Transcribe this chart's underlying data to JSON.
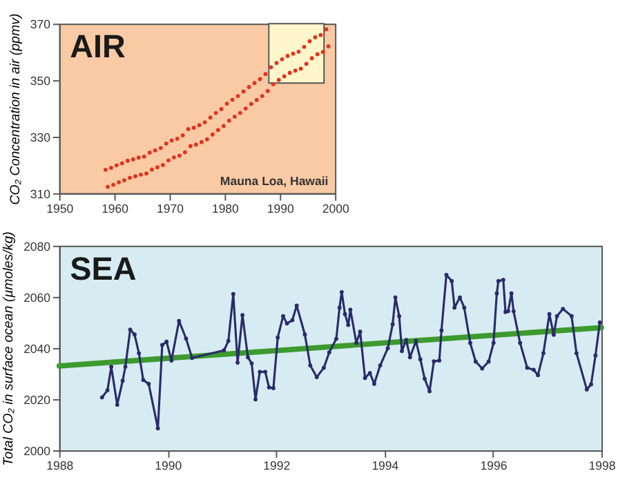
{
  "chart_data": [
    {
      "type": "scatter",
      "title": "AIR",
      "ylabel": "CO₂ Concentration in air (ppmv)",
      "xlim": [
        1950,
        2000
      ],
      "xticks": [
        1950,
        1960,
        1970,
        1980,
        1990,
        2000
      ],
      "ylim": [
        310,
        370
      ],
      "yticks": [
        310,
        330,
        350,
        370
      ],
      "marker": "circle",
      "annotations": [
        "Mauna Loa, Hawaii"
      ],
      "bands": [
        {
          "axis": "x",
          "from": 1988,
          "to": 1998,
          "color": "#fff6cc"
        }
      ],
      "series": [
        {
          "color": "#e2331e",
          "x": [
            1958.4,
            1958.8,
            1959.4,
            1959.8,
            1960.4,
            1960.8,
            1961.4,
            1961.8,
            1962.4,
            1962.8,
            1963.4,
            1963.8,
            1964.4,
            1964.8,
            1965.4,
            1965.8,
            1966.4,
            1966.8,
            1967.4,
            1967.8,
            1968.4,
            1968.8,
            1969.4,
            1969.8,
            1970.4,
            1970.8,
            1971.4,
            1971.8,
            1972.4,
            1972.8,
            1973.4,
            1973.8,
            1974.4,
            1974.8,
            1975.4,
            1975.8,
            1976.4,
            1976.8,
            1977.4,
            1977.8,
            1978.4,
            1978.8,
            1979.4,
            1979.8,
            1980.4,
            1980.8,
            1981.4,
            1981.8,
            1982.4,
            1982.8,
            1983.4,
            1983.8,
            1984.4,
            1984.8,
            1985.4,
            1985.8,
            1986.4,
            1986.8,
            1987.4,
            1987.8,
            1988.4,
            1988.8,
            1989.4,
            1989.8,
            1990.4,
            1990.8,
            1991.4,
            1991.8,
            1992.4,
            1992.8,
            1993.4,
            1993.8,
            1994.4,
            1994.8,
            1995.4,
            1995.8,
            1996.4,
            1996.8,
            1997.4,
            1997.8,
            1998.4,
            1998.8
          ],
          "values": [
            318.3,
            312.3,
            319.0,
            313.0,
            319.9,
            313.9,
            320.6,
            314.6,
            321.5,
            315.5,
            322.0,
            316.0,
            322.6,
            316.6,
            323.0,
            317.0,
            324.4,
            318.4,
            325.2,
            319.2,
            326.0,
            320.0,
            327.6,
            321.6,
            328.7,
            322.7,
            329.3,
            323.3,
            330.5,
            324.5,
            332.7,
            326.7,
            333.2,
            327.2,
            334.1,
            328.1,
            335.1,
            329.1,
            336.8,
            330.8,
            338.4,
            332.4,
            339.8,
            333.8,
            341.7,
            335.7,
            343.1,
            337.1,
            344.4,
            338.4,
            346.0,
            340.0,
            347.6,
            341.6,
            349.0,
            343.0,
            350.4,
            344.4,
            352.2,
            346.2,
            354.6,
            348.6,
            356.1,
            350.1,
            357.4,
            351.4,
            358.6,
            352.6,
            359.4,
            353.4,
            360.1,
            354.1,
            361.8,
            355.8,
            363.8,
            357.8,
            365.2,
            359.2,
            366.0,
            360.0,
            368.0,
            362.0
          ]
        }
      ]
    },
    {
      "type": "line",
      "title": "SEA",
      "ylabel": "Total CO₂ in surface ocean (µmoles/kg)",
      "xlim": [
        1988,
        1998
      ],
      "xticks": [
        1988,
        1990,
        1992,
        1994,
        1996,
        1998
      ],
      "ylim": [
        2000,
        2080
      ],
      "yticks": [
        2000,
        2020,
        2040,
        2060,
        2080
      ],
      "series": [
        {
          "type": "line",
          "color": "#3c9a2e",
          "x": [
            1988,
            1998
          ],
          "values": [
            2033,
            2048
          ]
        },
        {
          "type": "line",
          "color": "#2b2a6b",
          "marker": "circle",
          "x": [
            1988.79,
            1988.89,
            1988.96,
            1989.07,
            1989.17,
            1989.22,
            1989.31,
            1989.39,
            1989.47,
            1989.55,
            1989.65,
            1989.82,
            1989.9,
            1989.98,
            1990.07,
            1990.21,
            1990.34,
            1990.45,
            1991.04,
            1991.12,
            1991.21,
            1991.29,
            1991.38,
            1991.48,
            1991.55,
            1991.62,
            1991.7,
            1991.8,
            1991.87,
            1991.95,
            1992.03,
            1992.13,
            1992.2,
            1992.3,
            1992.38,
            1992.53,
            1992.63,
            1992.75,
            1992.88,
            1992.98,
            1993.11,
            1993.17,
            1993.21,
            1993.27,
            1993.33,
            1993.37,
            1993.48,
            1993.55,
            1993.64,
            1993.73,
            1993.81,
            1993.92,
            1994.06,
            1994.15,
            1994.2,
            1994.27,
            1994.32,
            1994.4,
            1994.47,
            1994.58,
            1994.66,
            1994.74,
            1994.83,
            1994.91,
            1995.01,
            1995.05,
            1995.14,
            1995.24,
            1995.29,
            1995.39,
            1995.47,
            1995.58,
            1995.68,
            1995.8,
            1995.92,
            1996.01,
            1996.07,
            1996.1,
            1996.19,
            1996.23,
            1996.28,
            1996.34,
            1996.38,
            1996.5,
            1996.63,
            1996.75,
            1996.83,
            1996.93,
            1997.04,
            1997.12,
            1997.18,
            1997.29,
            1997.45,
            1997.54,
            1997.73,
            1997.81,
            1997.89,
            1997.97
          ],
          "values": [
            2020.7,
            2023.5,
            2032.7,
            2017.8,
            2027.2,
            2032.7,
            2047.2,
            2045.3,
            2038.0,
            2027.5,
            2026.0,
            2008.6,
            2041.2,
            2042.5,
            2035.1,
            2050.6,
            2043.7,
            2036.1,
            2039.1,
            2042.8,
            2061.1,
            2034.3,
            2052.9,
            2036.4,
            2034.0,
            2019.9,
            2030.7,
            2030.7,
            2024.6,
            2024.3,
            2044.1,
            2052.5,
            2049.6,
            2050.9,
            2056.6,
            2045.3,
            2033.2,
            2028.6,
            2032.3,
            2038.3,
            2043.6,
            2055.8,
            2061.9,
            2053.3,
            2049.0,
            2055.0,
            2042.0,
            2046.4,
            2028.3,
            2030.2,
            2026.0,
            2033.2,
            2039.9,
            2049.3,
            2059.8,
            2052.5,
            2038.8,
            2043.2,
            2036.4,
            2042.8,
            2035.6,
            2028.0,
            2023.1,
            2034.8,
            2035.1,
            2046.9,
            2068.6,
            2066.2,
            2055.8,
            2059.8,
            2055.8,
            2042.0,
            2034.7,
            2032.0,
            2034.7,
            2042.0,
            2061.4,
            2066.2,
            2066.7,
            2054.1,
            2054.4,
            2061.4,
            2054.4,
            2042.0,
            2032.3,
            2031.5,
            2029.4,
            2038.0,
            2053.3,
            2045.2,
            2052.5,
            2055.3,
            2052.5,
            2038.0,
            2023.8,
            2025.8,
            2037.1,
            2050.0
          ]
        }
      ]
    }
  ]
}
